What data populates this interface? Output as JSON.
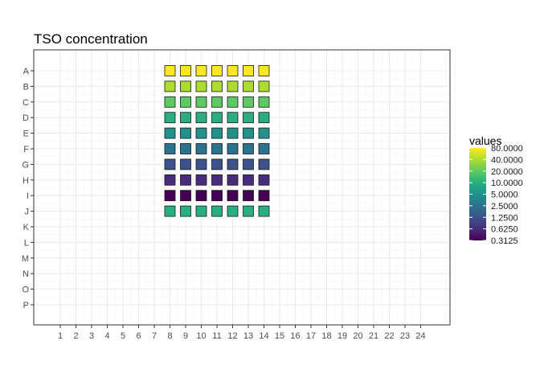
{
  "chart_data": {
    "type": "heatmap",
    "title": "TSO concentration",
    "xlabel": "",
    "ylabel": "",
    "x_categories": [
      "1",
      "2",
      "3",
      "4",
      "5",
      "6",
      "7",
      "8",
      "9",
      "10",
      "11",
      "12",
      "13",
      "14",
      "15",
      "16",
      "17",
      "18",
      "19",
      "20",
      "21",
      "22",
      "23",
      "24"
    ],
    "y_categories": [
      "A",
      "B",
      "C",
      "D",
      "E",
      "F",
      "G",
      "H",
      "I",
      "J",
      "K",
      "L",
      "M",
      "N",
      "O",
      "P"
    ],
    "grid": true,
    "scale": "log2",
    "legend": {
      "title": "values",
      "placement": "right",
      "colorscale": "viridis",
      "range": [
        0.3125,
        80
      ],
      "labels": [
        "80.0000",
        "40.0000",
        "20.0000",
        "10.0000",
        "5.0000",
        "2.5000",
        "1.2500",
        "0.6250",
        "0.3125"
      ]
    },
    "wells": {
      "columns": [
        "8",
        "9",
        "10",
        "11",
        "12",
        "13",
        "14"
      ],
      "rows": [
        {
          "row": "A",
          "value": 80
        },
        {
          "row": "B",
          "value": 40
        },
        {
          "row": "C",
          "value": 20
        },
        {
          "row": "D",
          "value": 10
        },
        {
          "row": "E",
          "value": 5
        },
        {
          "row": "F",
          "value": 2.5
        },
        {
          "row": "G",
          "value": 1.25
        },
        {
          "row": "H",
          "value": 0.625
        },
        {
          "row": "I",
          "value": 0.3125
        },
        {
          "row": "J",
          "value": 10
        }
      ]
    }
  }
}
